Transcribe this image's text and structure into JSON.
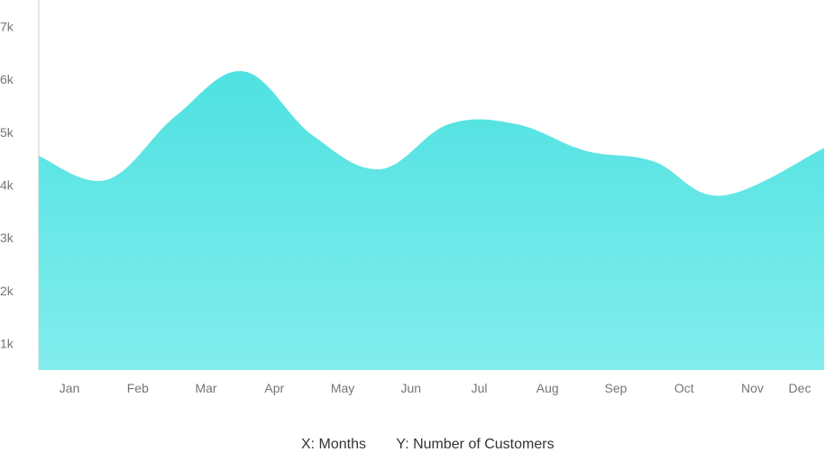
{
  "chart_data": {
    "type": "area",
    "categories": [
      "Jan",
      "Feb",
      "Mar",
      "Apr",
      "May",
      "Jun",
      "Jul",
      "Aug",
      "Sep",
      "Oct",
      "Nov",
      "Dec"
    ],
    "series": [
      {
        "values": [
          4550,
          4100,
          5300,
          6150,
          4950,
          4300,
          5150,
          5150,
          4650,
          4450,
          3800,
          4700
        ]
      }
    ],
    "ylim": [
      500,
      7500
    ],
    "yticks": [
      1000,
      2000,
      3000,
      4000,
      5000,
      6000,
      7000
    ],
    "ytick_labels": [
      "1k",
      "2k",
      "3k",
      "4k",
      "5k",
      "6k",
      "7k"
    ],
    "grid": false,
    "colors": {
      "area_top": "#4fe1e1",
      "area_bottom": "#82eded",
      "axis": "#cccccc",
      "tick_text": "#757575"
    }
  },
  "legend": {
    "x_label": "X: Months",
    "y_label": "Y: Number of Customers"
  }
}
